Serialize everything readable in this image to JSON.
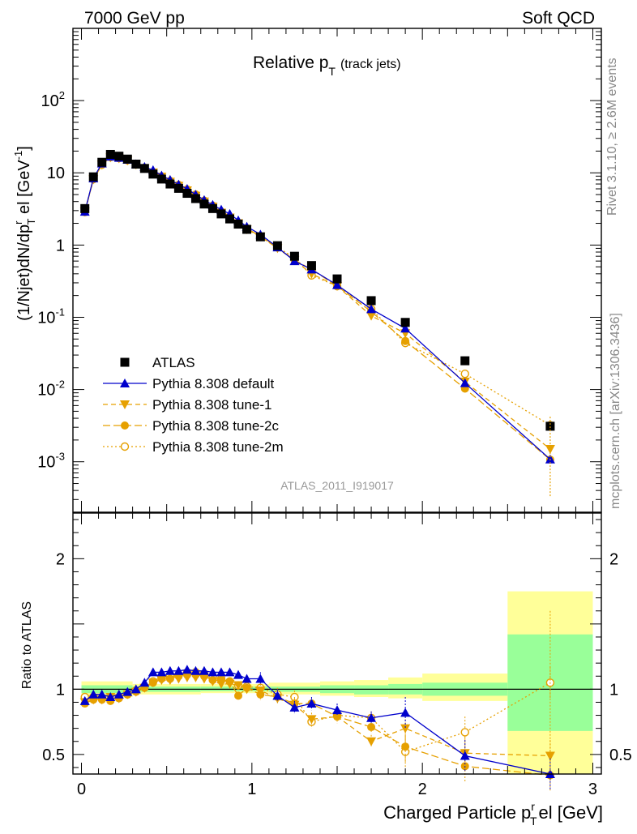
{
  "header": {
    "left": "7000 GeV pp",
    "right": "Soft QCD"
  },
  "side_labels": {
    "top": "Rivet 3.1.10, ≥ 2.6M events",
    "bottom": "mcplots.cern.ch [arXiv:1306.3436]"
  },
  "colors": {
    "data": "#000000",
    "default": "#0000cc",
    "tune": "#e6a000",
    "band_inner": "#99ff99",
    "band_outer": "#ffff99"
  },
  "chart_data": [
    {
      "type": "line",
      "panel": "main",
      "title": "Relative p_T (track jets)",
      "title_main": "Relative p",
      "title_sub": "T",
      "title_note": "(track jets)",
      "analysis": "ATLAS_2011_I919017",
      "ylabel": "(1/Njet)dN/dp^r_T el [GeV^-1]",
      "yscale": "log",
      "ylim": [
        0.0002,
        1000
      ],
      "xlim": [
        -0.05,
        3.05
      ],
      "y_tick_labels": [
        "10^-3",
        "10^-2",
        "10^-1",
        "1",
        "10",
        "10^2"
      ],
      "x": [
        0.02,
        0.07,
        0.12,
        0.17,
        0.22,
        0.27,
        0.32,
        0.37,
        0.42,
        0.47,
        0.52,
        0.57,
        0.62,
        0.67,
        0.72,
        0.77,
        0.82,
        0.87,
        0.92,
        0.97,
        1.05,
        1.15,
        1.25,
        1.35,
        1.5,
        1.7,
        1.9,
        2.25,
        2.75
      ],
      "series": [
        {
          "name": "ATLAS",
          "style": "data",
          "values": [
            3.2,
            8.8,
            14.0,
            18.0,
            17.0,
            15.5,
            13.2,
            11.5,
            9.6,
            8.2,
            7.0,
            6.1,
            5.2,
            4.4,
            3.7,
            3.2,
            2.7,
            2.3,
            1.95,
            1.65,
            1.3,
            0.98,
            0.7,
            0.52,
            0.34,
            0.17,
            0.085,
            0.025,
            0.0031
          ]
        },
        {
          "name": "Pythia 8.308 default",
          "style": "default",
          "values": [
            2.9,
            8.4,
            13.5,
            16.8,
            16.2,
            15.2,
            13.2,
            12.1,
            10.9,
            9.2,
            8.0,
            6.9,
            6.0,
            5.0,
            4.2,
            3.6,
            3.1,
            2.7,
            2.2,
            1.8,
            1.4,
            0.93,
            0.6,
            0.46,
            0.28,
            0.13,
            0.07,
            0.0123,
            0.00108
          ]
        },
        {
          "name": "Pythia 8.308 tune-1",
          "style": "tune1",
          "values": [
            2.9,
            8.1,
            12.9,
            16.3,
            15.8,
            14.8,
            13.0,
            11.6,
            10.1,
            8.8,
            7.5,
            6.6,
            5.7,
            4.8,
            4.0,
            3.4,
            2.8,
            2.4,
            2.0,
            1.65,
            1.31,
            0.9,
            0.62,
            0.4,
            0.27,
            0.105,
            0.06,
            0.0128,
            0.0015
          ]
        },
        {
          "name": "Pythia 8.308 tune-2c",
          "style": "tune2c",
          "values": [
            2.85,
            8.1,
            12.9,
            16.4,
            15.9,
            14.9,
            13.0,
            11.6,
            10.1,
            8.9,
            7.6,
            6.7,
            5.8,
            4.9,
            4.1,
            3.45,
            2.9,
            2.45,
            2.0,
            1.7,
            1.32,
            0.92,
            0.62,
            0.46,
            0.27,
            0.12,
            0.047,
            0.0103,
            0.00107
          ]
        },
        {
          "name": "Pythia 8.308 tune-2m",
          "style": "tune2m",
          "values": [
            3.0,
            8.3,
            13.1,
            16.5,
            16.0,
            15.0,
            13.1,
            11.7,
            10.2,
            8.9,
            7.7,
            6.8,
            5.9,
            5.0,
            4.1,
            3.5,
            2.9,
            2.45,
            2.0,
            1.7,
            1.32,
            0.94,
            0.66,
            0.38,
            0.27,
            0.13,
            0.044,
            0.0165,
            0.0032
          ]
        }
      ],
      "legend": [
        "ATLAS",
        "Pythia 8.308 default",
        "Pythia 8.308 tune-1",
        "Pythia 8.308 tune-2c",
        "Pythia 8.308 tune-2m"
      ],
      "legend_position": "lower-left"
    },
    {
      "type": "line",
      "panel": "ratio",
      "ylabel": "Ratio to ATLAS",
      "xlabel": "Charged Particle p^r_T el [GeV]",
      "xlabel_main": "Charged Particle p",
      "xlabel_sup": "r",
      "xlabel_sub": "T",
      "xlabel_tail": "el [GeV]",
      "ylim": [
        0.35,
        2.35
      ],
      "xlim": [
        -0.05,
        3.05
      ],
      "x_tick_labels": [
        "0",
        "1",
        "2",
        "3"
      ],
      "y_tick_labels": [
        "0.5",
        "1",
        "2"
      ],
      "reference_line": 1,
      "bands": [
        {
          "x_from": 0.0,
          "x_to": 0.3,
          "outer": [
            0.94,
            1.06
          ],
          "inner": [
            0.97,
            1.03
          ]
        },
        {
          "x_from": 0.3,
          "x_to": 0.7,
          "outer": [
            0.96,
            1.04
          ],
          "inner": [
            0.98,
            1.02
          ]
        },
        {
          "x_from": 0.7,
          "x_to": 1.1,
          "outer": [
            0.97,
            1.04
          ],
          "inner": [
            0.985,
            1.02
          ]
        },
        {
          "x_from": 1.1,
          "x_to": 1.4,
          "outer": [
            0.96,
            1.05
          ],
          "inner": [
            0.98,
            1.02
          ]
        },
        {
          "x_from": 1.4,
          "x_to": 1.6,
          "outer": [
            0.95,
            1.06
          ],
          "inner": [
            0.97,
            1.03
          ]
        },
        {
          "x_from": 1.6,
          "x_to": 1.8,
          "outer": [
            0.94,
            1.07
          ],
          "inner": [
            0.96,
            1.03
          ]
        },
        {
          "x_from": 1.8,
          "x_to": 2.0,
          "outer": [
            0.93,
            1.09
          ],
          "inner": [
            0.96,
            1.04
          ]
        },
        {
          "x_from": 2.0,
          "x_to": 2.5,
          "outer": [
            0.91,
            1.12
          ],
          "inner": [
            0.95,
            1.05
          ]
        },
        {
          "x_from": 2.5,
          "x_to": 3.0,
          "outer": [
            0.3,
            1.75
          ],
          "inner": [
            0.68,
            1.42
          ]
        }
      ],
      "series": [
        {
          "name": "Pythia 8.308 default",
          "style": "default",
          "values": [
            0.91,
            0.96,
            0.96,
            0.94,
            0.96,
            0.98,
            1.0,
            1.05,
            1.13,
            1.13,
            1.14,
            1.14,
            1.15,
            1.14,
            1.14,
            1.13,
            1.13,
            1.13,
            1.11,
            1.08,
            1.08,
            0.95,
            0.86,
            0.89,
            0.84,
            0.78,
            0.82,
            0.49,
            0.35
          ]
        },
        {
          "name": "Pythia 8.308 tune-1",
          "style": "tune1",
          "values": [
            0.9,
            0.92,
            0.92,
            0.94,
            0.93,
            0.96,
            0.98,
            1.01,
            1.05,
            1.07,
            1.07,
            1.08,
            1.09,
            1.09,
            1.08,
            1.06,
            1.04,
            1.04,
            1.03,
            1.0,
            0.99,
            0.93,
            0.88,
            0.77,
            0.79,
            0.6,
            0.7,
            0.51,
            0.49
          ]
        },
        {
          "name": "Pythia 8.308 tune-2c",
          "style": "tune2c",
          "values": [
            0.89,
            0.92,
            0.92,
            0.91,
            0.93,
            0.96,
            0.98,
            1.01,
            1.05,
            1.08,
            1.08,
            1.1,
            1.11,
            1.11,
            1.1,
            1.07,
            1.07,
            1.06,
            0.95,
            1.01,
            0.96,
            0.94,
            0.89,
            0.89,
            0.79,
            0.71,
            0.56,
            0.41,
            0.34
          ]
        },
        {
          "name": "Pythia 8.308 tune-2m",
          "style": "tune2m",
          "values": [
            0.94,
            0.94,
            0.93,
            0.92,
            0.94,
            0.96,
            0.99,
            1.02,
            1.06,
            1.09,
            1.1,
            1.11,
            1.13,
            1.13,
            1.12,
            1.09,
            1.08,
            1.06,
            1.03,
            1.02,
            1.01,
            0.96,
            0.94,
            0.75,
            0.8,
            0.78,
            0.52,
            0.67,
            1.05
          ]
        }
      ]
    }
  ]
}
